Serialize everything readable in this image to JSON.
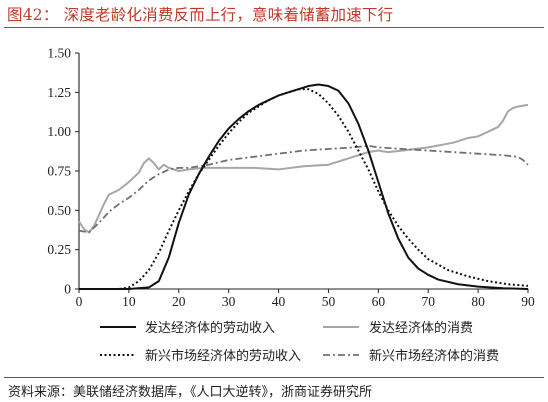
{
  "header": {
    "title": "图42：  深度老龄化消费反而上行，意味着储蓄加速下行"
  },
  "footer": {
    "source": "资料来源：美联储经济数据库，《人口大逆转》，浙商证券研究所"
  },
  "chart_data": {
    "type": "line",
    "xlim": [
      0,
      90
    ],
    "ylim": [
      0,
      1.5
    ],
    "x_ticks": [
      "0",
      "10",
      "20",
      "30",
      "40",
      "50",
      "60",
      "70",
      "80",
      "90"
    ],
    "y_ticks": [
      "0",
      "0.25",
      "0.50",
      "0.75",
      "1.00",
      "1.25",
      "1.50"
    ],
    "grid": false,
    "legend_position": "bottom",
    "series": [
      {
        "name": "发达经济体的劳动收入",
        "color": "#111111",
        "style": "solid",
        "points": [
          [
            0,
            0
          ],
          [
            10,
            0
          ],
          [
            14,
            0.01
          ],
          [
            16,
            0.05
          ],
          [
            18,
            0.2
          ],
          [
            20,
            0.42
          ],
          [
            22,
            0.6
          ],
          [
            24,
            0.73
          ],
          [
            26,
            0.84
          ],
          [
            28,
            0.94
          ],
          [
            30,
            1.02
          ],
          [
            32,
            1.08
          ],
          [
            34,
            1.13
          ],
          [
            36,
            1.17
          ],
          [
            38,
            1.2
          ],
          [
            40,
            1.23
          ],
          [
            42,
            1.25
          ],
          [
            44,
            1.27
          ],
          [
            46,
            1.29
          ],
          [
            48,
            1.3
          ],
          [
            50,
            1.29
          ],
          [
            52,
            1.26
          ],
          [
            54,
            1.18
          ],
          [
            56,
            1.05
          ],
          [
            58,
            0.88
          ],
          [
            60,
            0.68
          ],
          [
            62,
            0.48
          ],
          [
            64,
            0.32
          ],
          [
            66,
            0.2
          ],
          [
            68,
            0.13
          ],
          [
            70,
            0.09
          ],
          [
            72,
            0.06
          ],
          [
            76,
            0.03
          ],
          [
            80,
            0.015
          ],
          [
            85,
            0.005
          ],
          [
            90,
            0
          ]
        ]
      },
      {
        "name": "发达经济体的消费",
        "color": "#a6a6a6",
        "style": "solid",
        "points": [
          [
            0,
            0.43
          ],
          [
            1,
            0.38
          ],
          [
            2,
            0.36
          ],
          [
            3,
            0.4
          ],
          [
            4,
            0.47
          ],
          [
            5,
            0.54
          ],
          [
            6,
            0.6
          ],
          [
            8,
            0.63
          ],
          [
            10,
            0.68
          ],
          [
            12,
            0.74
          ],
          [
            13,
            0.8
          ],
          [
            14,
            0.83
          ],
          [
            15,
            0.8
          ],
          [
            16,
            0.76
          ],
          [
            17,
            0.79
          ],
          [
            18,
            0.77
          ],
          [
            20,
            0.75
          ],
          [
            22,
            0.76
          ],
          [
            25,
            0.77
          ],
          [
            30,
            0.77
          ],
          [
            35,
            0.77
          ],
          [
            40,
            0.76
          ],
          [
            45,
            0.78
          ],
          [
            50,
            0.79
          ],
          [
            55,
            0.84
          ],
          [
            58,
            0.87
          ],
          [
            60,
            0.88
          ],
          [
            62,
            0.87
          ],
          [
            65,
            0.88
          ],
          [
            70,
            0.9
          ],
          [
            75,
            0.93
          ],
          [
            78,
            0.96
          ],
          [
            80,
            0.97
          ],
          [
            82,
            1.0
          ],
          [
            84,
            1.03
          ],
          [
            85,
            1.07
          ],
          [
            86,
            1.13
          ],
          [
            87,
            1.15
          ],
          [
            88,
            1.16
          ],
          [
            90,
            1.17
          ]
        ]
      },
      {
        "name": "新兴市场经济体的劳动收入",
        "color": "#111111",
        "style": "dotted",
        "points": [
          [
            0,
            0
          ],
          [
            8,
            0
          ],
          [
            10,
            0.01
          ],
          [
            12,
            0.05
          ],
          [
            14,
            0.12
          ],
          [
            16,
            0.23
          ],
          [
            18,
            0.37
          ],
          [
            20,
            0.5
          ],
          [
            22,
            0.62
          ],
          [
            24,
            0.73
          ],
          [
            26,
            0.82
          ],
          [
            28,
            0.91
          ],
          [
            30,
            0.99
          ],
          [
            32,
            1.06
          ],
          [
            34,
            1.12
          ],
          [
            36,
            1.16
          ],
          [
            38,
            1.2
          ],
          [
            40,
            1.23
          ],
          [
            42,
            1.25
          ],
          [
            44,
            1.27
          ],
          [
            46,
            1.27
          ],
          [
            48,
            1.24
          ],
          [
            50,
            1.18
          ],
          [
            52,
            1.1
          ],
          [
            54,
            1.0
          ],
          [
            56,
            0.88
          ],
          [
            58,
            0.76
          ],
          [
            60,
            0.62
          ],
          [
            62,
            0.5
          ],
          [
            64,
            0.4
          ],
          [
            66,
            0.32
          ],
          [
            68,
            0.25
          ],
          [
            70,
            0.19
          ],
          [
            74,
            0.12
          ],
          [
            78,
            0.08
          ],
          [
            82,
            0.05
          ],
          [
            86,
            0.03
          ],
          [
            90,
            0.02
          ]
        ]
      },
      {
        "name": "新兴市场经济体的消费",
        "color": "#707070",
        "style": "dashdot",
        "points": [
          [
            0,
            0.37
          ],
          [
            2,
            0.36
          ],
          [
            4,
            0.42
          ],
          [
            6,
            0.49
          ],
          [
            8,
            0.54
          ],
          [
            10,
            0.58
          ],
          [
            12,
            0.63
          ],
          [
            14,
            0.69
          ],
          [
            16,
            0.73
          ],
          [
            18,
            0.76
          ],
          [
            20,
            0.77
          ],
          [
            22,
            0.77
          ],
          [
            24,
            0.78
          ],
          [
            26,
            0.79
          ],
          [
            30,
            0.82
          ],
          [
            35,
            0.84
          ],
          [
            40,
            0.86
          ],
          [
            45,
            0.88
          ],
          [
            50,
            0.89
          ],
          [
            55,
            0.9
          ],
          [
            58,
            0.91
          ],
          [
            60,
            0.9
          ],
          [
            65,
            0.89
          ],
          [
            70,
            0.88
          ],
          [
            75,
            0.87
          ],
          [
            80,
            0.86
          ],
          [
            85,
            0.85
          ],
          [
            88,
            0.84
          ],
          [
            89,
            0.82
          ],
          [
            90,
            0.79
          ]
        ]
      }
    ]
  }
}
